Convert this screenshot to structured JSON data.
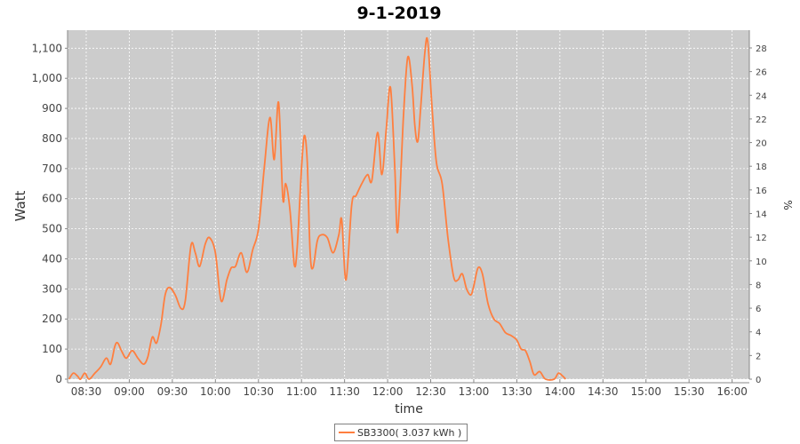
{
  "chart_data": {
    "type": "line",
    "title": "9-1-2019",
    "xlabel": "time",
    "ylabel": "Watt",
    "y2label": "%",
    "x_ticks": [
      "08:30",
      "09:00",
      "09:30",
      "10:00",
      "10:30",
      "11:00",
      "11:30",
      "12:00",
      "12:30",
      "13:00",
      "13:30",
      "14:00",
      "14:30",
      "15:00",
      "15:30",
      "16:00"
    ],
    "y_ticks": [
      0,
      100,
      200,
      300,
      400,
      500,
      600,
      700,
      800,
      900,
      1000,
      1100
    ],
    "y2_ticks": [
      0,
      2,
      4,
      6,
      8,
      10,
      12,
      14,
      16,
      18,
      20,
      22,
      24,
      26,
      28
    ],
    "ylim": [
      0,
      1160
    ],
    "y2lim": [
      0,
      29.5
    ],
    "xlim": [
      "08:17",
      "16:12"
    ],
    "grid": true,
    "legend_position": "bottom",
    "series": [
      {
        "name": "SB3300( 3.037 kWh )",
        "color": "#ff7f3f",
        "points": [
          [
            "08:18",
            0
          ],
          [
            "08:21",
            20
          ],
          [
            "08:24",
            10
          ],
          [
            "08:26",
            0
          ],
          [
            "08:29",
            20
          ],
          [
            "08:32",
            0
          ],
          [
            "08:36",
            20
          ],
          [
            "08:40",
            40
          ],
          [
            "08:44",
            70
          ],
          [
            "08:47",
            50
          ],
          [
            "08:50",
            110
          ],
          [
            "08:52",
            120
          ],
          [
            "08:55",
            90
          ],
          [
            "08:58",
            70
          ],
          [
            "09:02",
            95
          ],
          [
            "09:06",
            70
          ],
          [
            "09:10",
            50
          ],
          [
            "09:13",
            75
          ],
          [
            "09:16",
            140
          ],
          [
            "09:19",
            120
          ],
          [
            "09:22",
            180
          ],
          [
            "09:25",
            280
          ],
          [
            "09:28",
            305
          ],
          [
            "09:32",
            280
          ],
          [
            "09:36",
            235
          ],
          [
            "09:39",
            260
          ],
          [
            "09:43",
            445
          ],
          [
            "09:46",
            420
          ],
          [
            "09:49",
            375
          ],
          [
            "09:53",
            450
          ],
          [
            "09:56",
            470
          ],
          [
            "10:00",
            420
          ],
          [
            "10:04",
            260
          ],
          [
            "10:08",
            330
          ],
          [
            "10:11",
            370
          ],
          [
            "10:14",
            375
          ],
          [
            "10:18",
            420
          ],
          [
            "10:22",
            355
          ],
          [
            "10:26",
            430
          ],
          [
            "10:30",
            500
          ],
          [
            "10:34",
            700
          ],
          [
            "10:38",
            870
          ],
          [
            "10:41",
            730
          ],
          [
            "10:44",
            920
          ],
          [
            "10:47",
            600
          ],
          [
            "10:49",
            650
          ],
          [
            "10:52",
            560
          ],
          [
            "10:55",
            380
          ],
          [
            "10:57",
            440
          ],
          [
            "11:00",
            700
          ],
          [
            "11:02",
            810
          ],
          [
            "11:04",
            720
          ],
          [
            "11:06",
            420
          ],
          [
            "11:08",
            370
          ],
          [
            "11:11",
            460
          ],
          [
            "11:14",
            480
          ],
          [
            "11:18",
            470
          ],
          [
            "11:22",
            420
          ],
          [
            "11:26",
            480
          ],
          [
            "11:28",
            530
          ],
          [
            "11:31",
            330
          ],
          [
            "11:35",
            580
          ],
          [
            "11:38",
            610
          ],
          [
            "11:42",
            650
          ],
          [
            "11:46",
            680
          ],
          [
            "11:49",
            660
          ],
          [
            "11:53",
            820
          ],
          [
            "11:56",
            680
          ],
          [
            "11:59",
            830
          ],
          [
            "12:02",
            970
          ],
          [
            "12:05",
            700
          ],
          [
            "12:07",
            490
          ],
          [
            "12:11",
            870
          ],
          [
            "12:14",
            1070
          ],
          [
            "12:17",
            980
          ],
          [
            "12:19",
            840
          ],
          [
            "12:21",
            790
          ],
          [
            "12:23",
            900
          ],
          [
            "12:26",
            1090
          ],
          [
            "12:28",
            1120
          ],
          [
            "12:31",
            900
          ],
          [
            "12:34",
            720
          ],
          [
            "12:38",
            650
          ],
          [
            "12:42",
            470
          ],
          [
            "12:46",
            340
          ],
          [
            "12:49",
            330
          ],
          [
            "12:52",
            350
          ],
          [
            "12:55",
            300
          ],
          [
            "12:58",
            280
          ],
          [
            "13:00",
            310
          ],
          [
            "13:03",
            370
          ],
          [
            "13:06",
            350
          ],
          [
            "13:10",
            250
          ],
          [
            "13:14",
            200
          ],
          [
            "13:18",
            185
          ],
          [
            "13:22",
            155
          ],
          [
            "13:26",
            145
          ],
          [
            "13:30",
            130
          ],
          [
            "13:33",
            100
          ],
          [
            "13:36",
            95
          ],
          [
            "13:39",
            60
          ],
          [
            "13:42",
            15
          ],
          [
            "13:46",
            25
          ],
          [
            "13:50",
            0
          ],
          [
            "13:56",
            0
          ],
          [
            "13:59",
            20
          ],
          [
            "14:02",
            10
          ],
          [
            "14:04",
            0
          ]
        ]
      }
    ]
  }
}
